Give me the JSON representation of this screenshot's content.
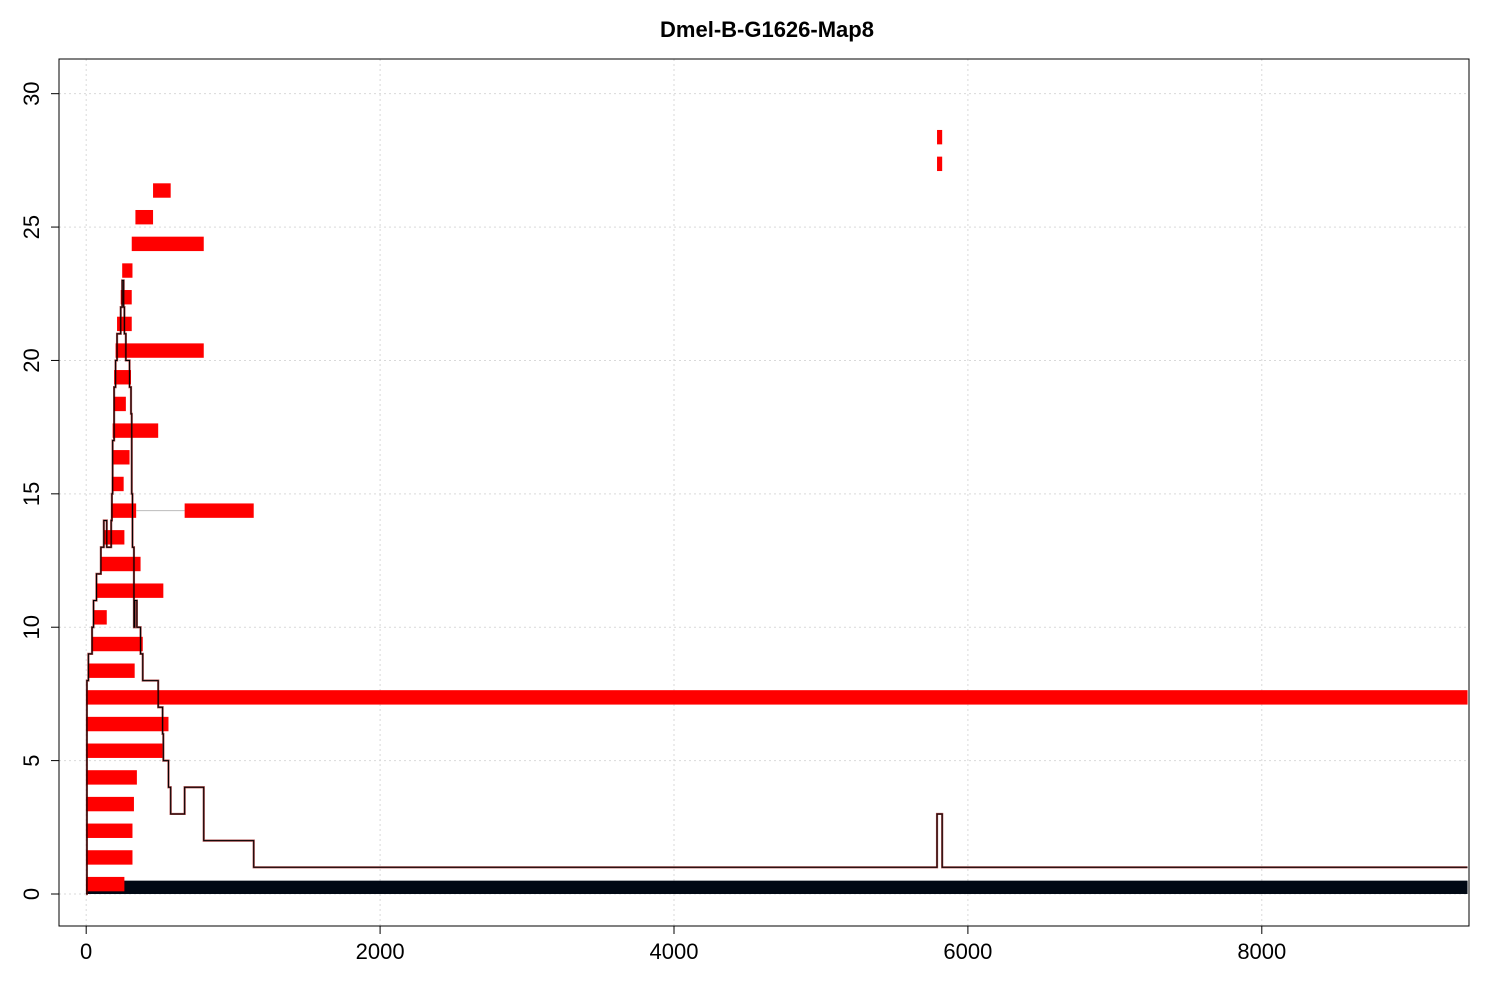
{
  "chart_data": {
    "type": "bar",
    "title": "Dmel-B-G1626-Map8",
    "xlabel": "",
    "ylabel": "",
    "xlim": [
      -185,
      9410
    ],
    "ylim": [
      -1.2,
      31.3
    ],
    "xticks": [
      0,
      2000,
      4000,
      6000,
      8000
    ],
    "yticks": [
      0,
      5,
      10,
      15,
      20,
      25,
      30
    ],
    "xtick_labels": [
      "0",
      "2000",
      "4000",
      "6000",
      "8000"
    ],
    "ytick_labels": [
      "0",
      "5",
      "10",
      "15",
      "20",
      "25",
      "30"
    ],
    "grid": true,
    "colors": {
      "reads": "#ff0000",
      "reference": "#000814",
      "coverage": "#000000",
      "coverage_outline": "#8b0000",
      "connector": "#bbbbbb"
    },
    "reference": {
      "x_start": 0,
      "x_end": 9400,
      "y": 0.5
    },
    "reads": [
      {
        "row": 1,
        "x_start": 0,
        "x_end": 260
      },
      {
        "row": 2,
        "x_start": 0,
        "x_end": 315
      },
      {
        "row": 3,
        "x_start": 0,
        "x_end": 315
      },
      {
        "row": 4,
        "x_start": 0,
        "x_end": 325
      },
      {
        "row": 5,
        "x_start": 0,
        "x_end": 345
      },
      {
        "row": 6,
        "x_start": 0,
        "x_end": 520
      },
      {
        "row": 7,
        "x_start": 0,
        "x_end": 560
      },
      {
        "row": 8,
        "x_start": 0,
        "x_end": 9400
      },
      {
        "row": 9,
        "x_start": 15,
        "x_end": 330
      },
      {
        "row": 10,
        "x_start": 40,
        "x_end": 385
      },
      {
        "row": 11,
        "x_start": 50,
        "x_end": 140
      },
      {
        "row": 12,
        "x_start": 70,
        "x_end": 525
      },
      {
        "row": 13,
        "x_start": 100,
        "x_end": 370
      },
      {
        "row": 14,
        "x_start": 120,
        "x_end": 260
      },
      {
        "row": 15,
        "x_start": 170,
        "x_end": 340,
        "x_start2": 670,
        "x_end2": 1140
      },
      {
        "row": 16,
        "x_start": 175,
        "x_end": 255
      },
      {
        "row": 17,
        "x_start": 180,
        "x_end": 295
      },
      {
        "row": 18,
        "x_start": 180,
        "x_end": 490
      },
      {
        "row": 19,
        "x_start": 190,
        "x_end": 270
      },
      {
        "row": 20,
        "x_start": 190,
        "x_end": 305
      },
      {
        "row": 21,
        "x_start": 200,
        "x_end": 800
      },
      {
        "row": 22,
        "x_start": 210,
        "x_end": 310
      },
      {
        "row": 23,
        "x_start": 235,
        "x_end": 310
      },
      {
        "row": 24,
        "x_start": 245,
        "x_end": 315
      },
      {
        "row": 25,
        "x_start": 310,
        "x_end": 800
      },
      {
        "row": 26,
        "x_start": 335,
        "x_end": 455
      },
      {
        "row": 27,
        "x_start": 455,
        "x_end": 575
      },
      {
        "row": 28,
        "x_start": 5790,
        "x_end": 5825
      },
      {
        "row": 29,
        "x_start": 5790,
        "x_end": 5825
      }
    ],
    "coverage": {
      "x": [
        0,
        5,
        15,
        40,
        50,
        70,
        100,
        120,
        140,
        170,
        175,
        180,
        190,
        200,
        210,
        235,
        245,
        255,
        260,
        270,
        295,
        305,
        310,
        315,
        325,
        330,
        340,
        345,
        370,
        385,
        455,
        490,
        520,
        525,
        560,
        575,
        670,
        800,
        1140,
        5790,
        5825,
        9400
      ],
      "y": [
        0,
        8,
        9,
        10,
        11,
        12,
        13,
        14,
        13,
        14,
        15,
        17,
        19,
        20,
        21,
        22,
        23,
        22,
        21,
        20,
        19,
        18,
        15,
        13,
        10,
        11,
        11,
        10,
        9,
        8,
        8,
        7,
        6,
        5,
        4,
        3,
        4,
        2,
        1,
        3,
        1,
        1
      ]
    }
  }
}
